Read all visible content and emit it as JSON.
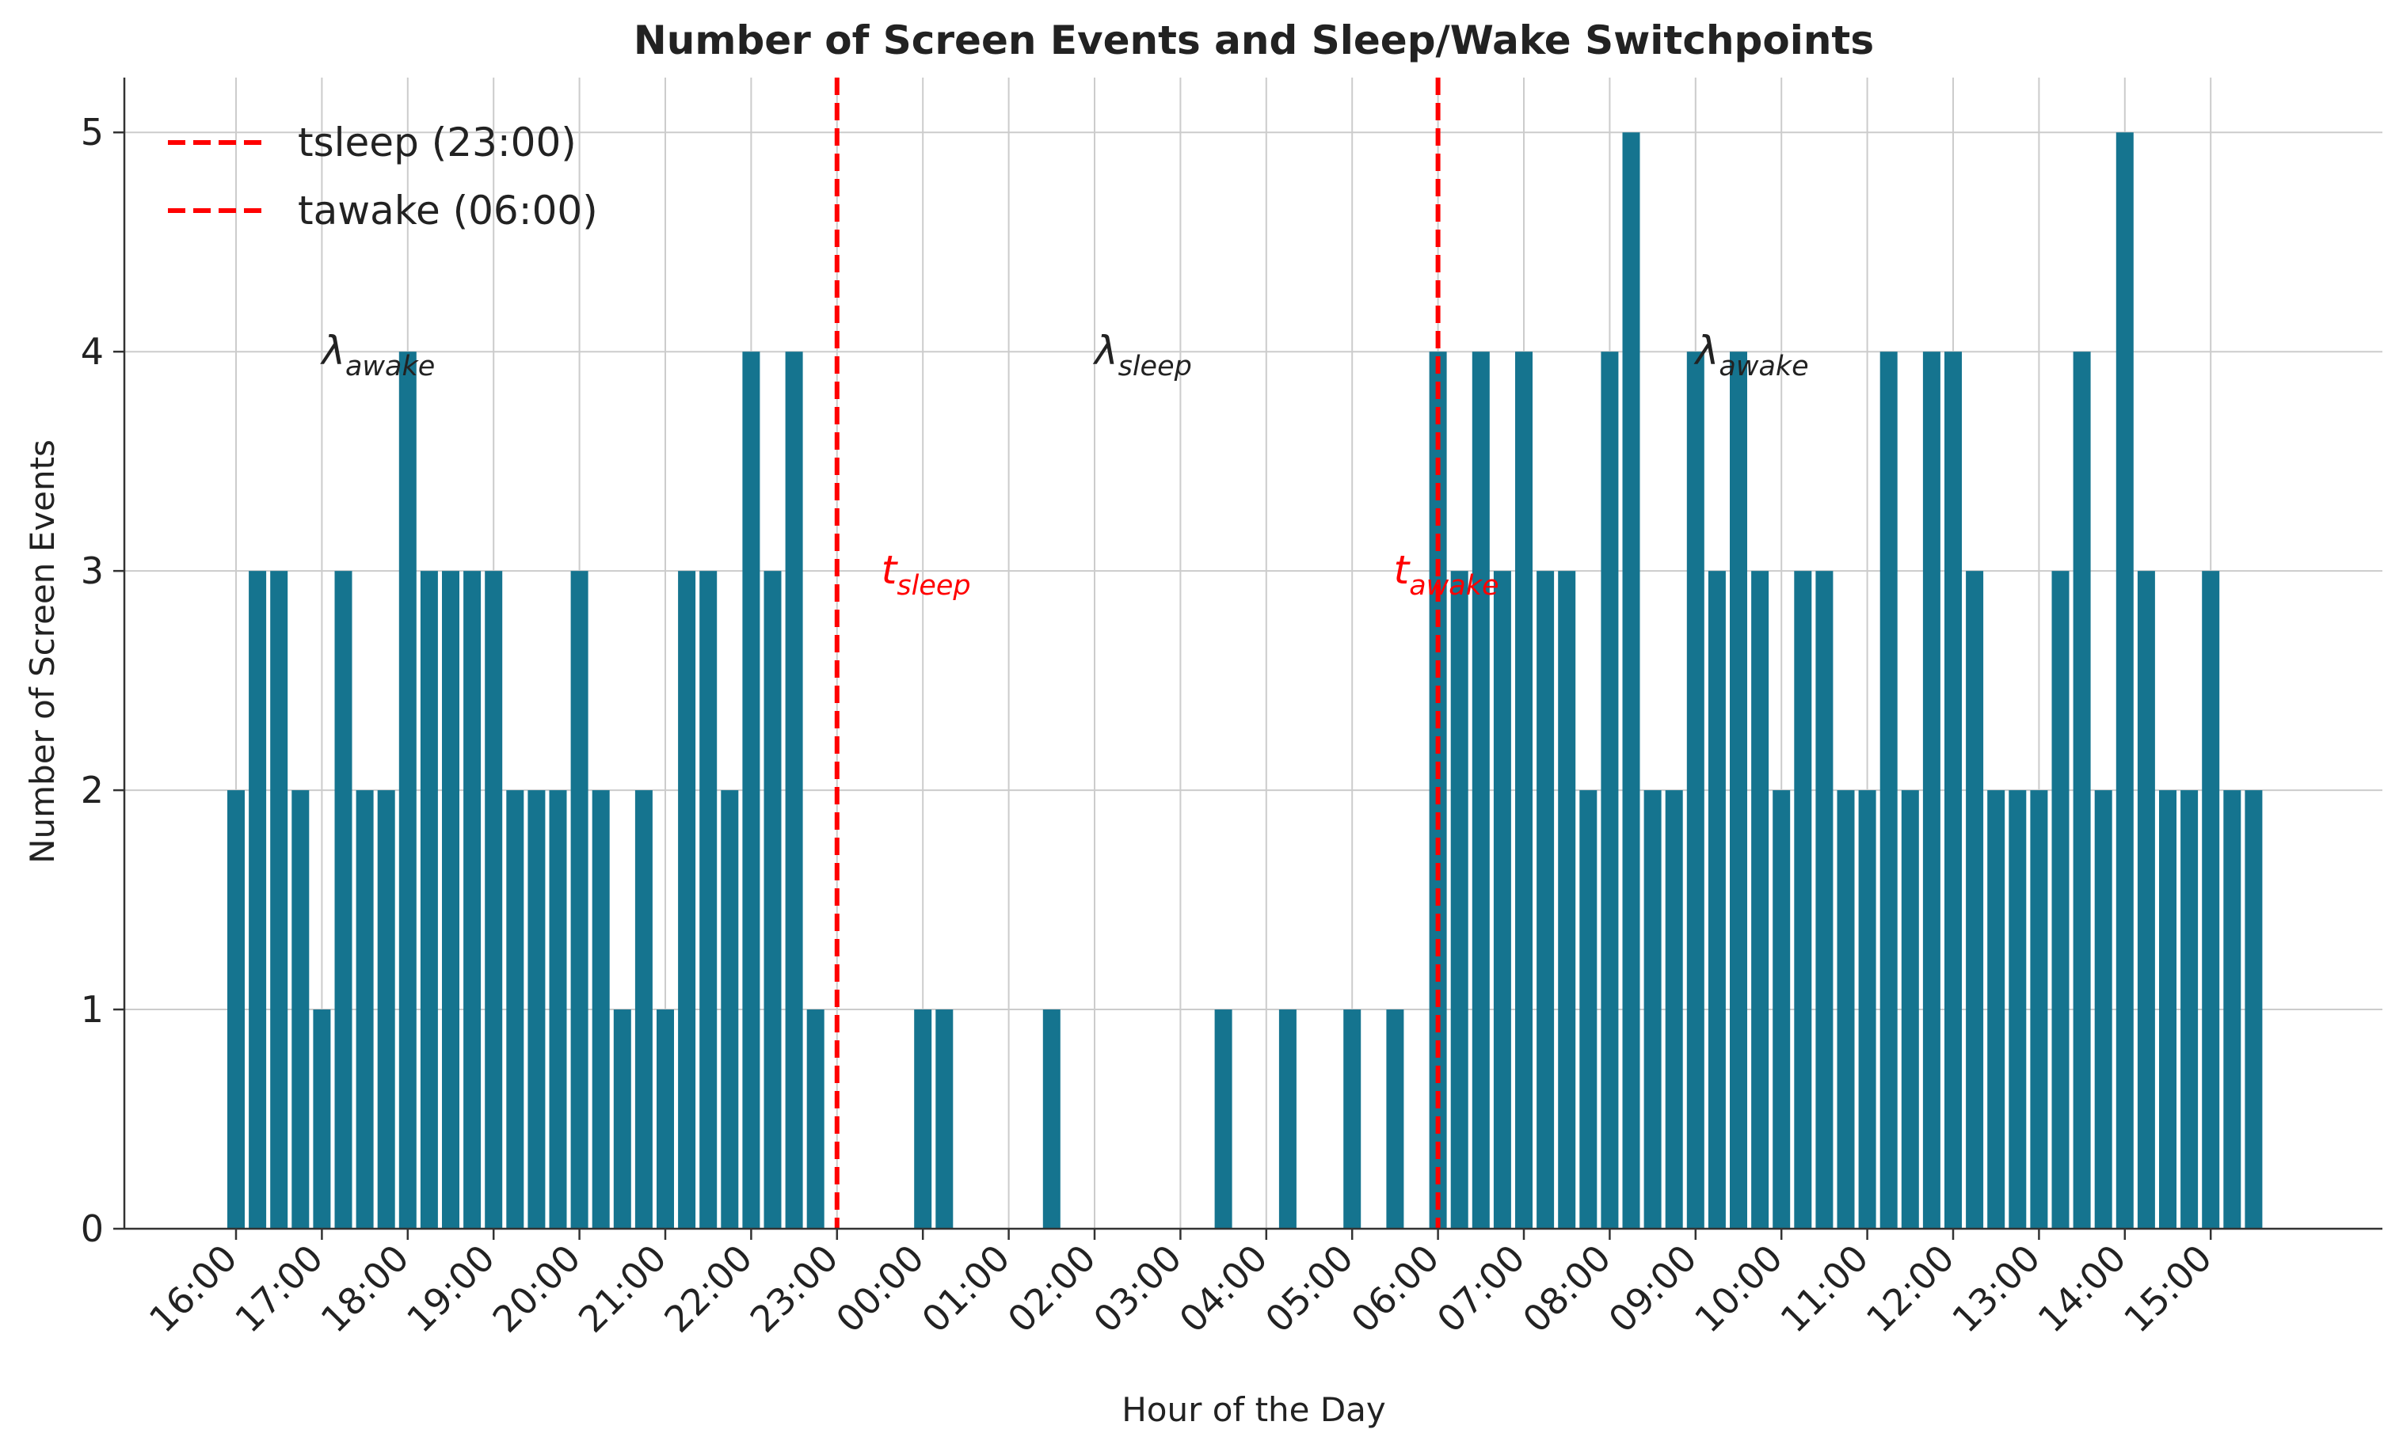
{
  "chart_data": {
    "type": "bar",
    "title": "Number of Screen Events and Sleep/Wake Switchpoints",
    "xlabel": "Hour of the Day",
    "ylabel": "Number of Screen Events",
    "ylim": [
      0,
      5.25
    ],
    "yticks": [
      0,
      1,
      2,
      3,
      4,
      5
    ],
    "grid": true,
    "bin_minutes": 15,
    "bar_color": "#15748f",
    "tick_labels": [
      "16:00",
      "17:00",
      "18:00",
      "19:00",
      "20:00",
      "21:00",
      "22:00",
      "23:00",
      "00:00",
      "01:00",
      "02:00",
      "03:00",
      "04:00",
      "05:00",
      "06:00",
      "07:00",
      "08:00",
      "09:00",
      "10:00",
      "11:00",
      "12:00",
      "13:00",
      "14:00",
      "15:00"
    ],
    "bars": [
      {
        "t": "16:00",
        "v": 2
      },
      {
        "t": "16:15",
        "v": 3
      },
      {
        "t": "16:30",
        "v": 3
      },
      {
        "t": "16:45",
        "v": 2
      },
      {
        "t": "17:00",
        "v": 1
      },
      {
        "t": "17:15",
        "v": 3
      },
      {
        "t": "17:30",
        "v": 2
      },
      {
        "t": "17:45",
        "v": 2
      },
      {
        "t": "18:00",
        "v": 4
      },
      {
        "t": "18:15",
        "v": 3
      },
      {
        "t": "18:30",
        "v": 3
      },
      {
        "t": "18:45",
        "v": 3
      },
      {
        "t": "19:00",
        "v": 3
      },
      {
        "t": "19:15",
        "v": 2
      },
      {
        "t": "19:30",
        "v": 2
      },
      {
        "t": "19:45",
        "v": 2
      },
      {
        "t": "20:00",
        "v": 3
      },
      {
        "t": "20:15",
        "v": 2
      },
      {
        "t": "20:30",
        "v": 1
      },
      {
        "t": "20:45",
        "v": 2
      },
      {
        "t": "21:00",
        "v": 1
      },
      {
        "t": "21:15",
        "v": 3
      },
      {
        "t": "21:30",
        "v": 3
      },
      {
        "t": "21:45",
        "v": 2
      },
      {
        "t": "22:00",
        "v": 4
      },
      {
        "t": "22:15",
        "v": 3
      },
      {
        "t": "22:30",
        "v": 4
      },
      {
        "t": "22:45",
        "v": 1
      },
      {
        "t": "00:00",
        "v": 1
      },
      {
        "t": "00:15",
        "v": 1
      },
      {
        "t": "01:30",
        "v": 1
      },
      {
        "t": "03:30",
        "v": 1
      },
      {
        "t": "04:15",
        "v": 1
      },
      {
        "t": "05:00",
        "v": 1
      },
      {
        "t": "05:30",
        "v": 1
      },
      {
        "t": "06:00",
        "v": 4
      },
      {
        "t": "06:15",
        "v": 3
      },
      {
        "t": "06:30",
        "v": 4
      },
      {
        "t": "06:45",
        "v": 3
      },
      {
        "t": "07:00",
        "v": 4
      },
      {
        "t": "07:15",
        "v": 3
      },
      {
        "t": "07:30",
        "v": 3
      },
      {
        "t": "07:45",
        "v": 2
      },
      {
        "t": "08:00",
        "v": 4
      },
      {
        "t": "08:15",
        "v": 5
      },
      {
        "t": "08:30",
        "v": 2
      },
      {
        "t": "08:45",
        "v": 2
      },
      {
        "t": "09:00",
        "v": 4
      },
      {
        "t": "09:15",
        "v": 3
      },
      {
        "t": "09:30",
        "v": 4
      },
      {
        "t": "09:45",
        "v": 3
      },
      {
        "t": "10:00",
        "v": 2
      },
      {
        "t": "10:15",
        "v": 3
      },
      {
        "t": "10:30",
        "v": 3
      },
      {
        "t": "10:45",
        "v": 2
      },
      {
        "t": "11:00",
        "v": 2
      },
      {
        "t": "11:15",
        "v": 4
      },
      {
        "t": "11:30",
        "v": 2
      },
      {
        "t": "11:45",
        "v": 4
      },
      {
        "t": "12:00",
        "v": 4
      },
      {
        "t": "12:15",
        "v": 3
      },
      {
        "t": "12:30",
        "v": 2
      },
      {
        "t": "12:45",
        "v": 2
      },
      {
        "t": "13:00",
        "v": 2
      },
      {
        "t": "13:15",
        "v": 3
      },
      {
        "t": "13:30",
        "v": 4
      },
      {
        "t": "13:45",
        "v": 2
      },
      {
        "t": "14:00",
        "v": 5
      },
      {
        "t": "14:15",
        "v": 3
      },
      {
        "t": "14:30",
        "v": 2
      },
      {
        "t": "14:45",
        "v": 2
      },
      {
        "t": "15:00",
        "v": 3
      },
      {
        "t": "15:15",
        "v": 2
      },
      {
        "t": "15:30",
        "v": 2
      }
    ],
    "switchpoints": [
      {
        "name": "tsleep (23:00)",
        "t": "23:00",
        "color": "#ff0000",
        "label_base": "t",
        "label_sub": "sleep",
        "label_y": 3
      },
      {
        "name": "tawake (06:00)",
        "t": "06:00",
        "color": "#ff0000",
        "label_base": "t",
        "label_sub": "awake",
        "label_y": 3
      }
    ],
    "legend": {
      "placement": "top-left",
      "entries": [
        "tsleep (23:00)",
        "tawake (06:00)"
      ]
    },
    "annotations": [
      {
        "base": "λ",
        "sub": "awake",
        "t": "17:00",
        "y": 4,
        "color": "#222222"
      },
      {
        "base": "λ",
        "sub": "sleep",
        "t": "02:00",
        "y": 4,
        "color": "#222222"
      },
      {
        "base": "λ",
        "sub": "awake",
        "t": "09:00",
        "y": 4,
        "color": "#222222"
      }
    ]
  }
}
